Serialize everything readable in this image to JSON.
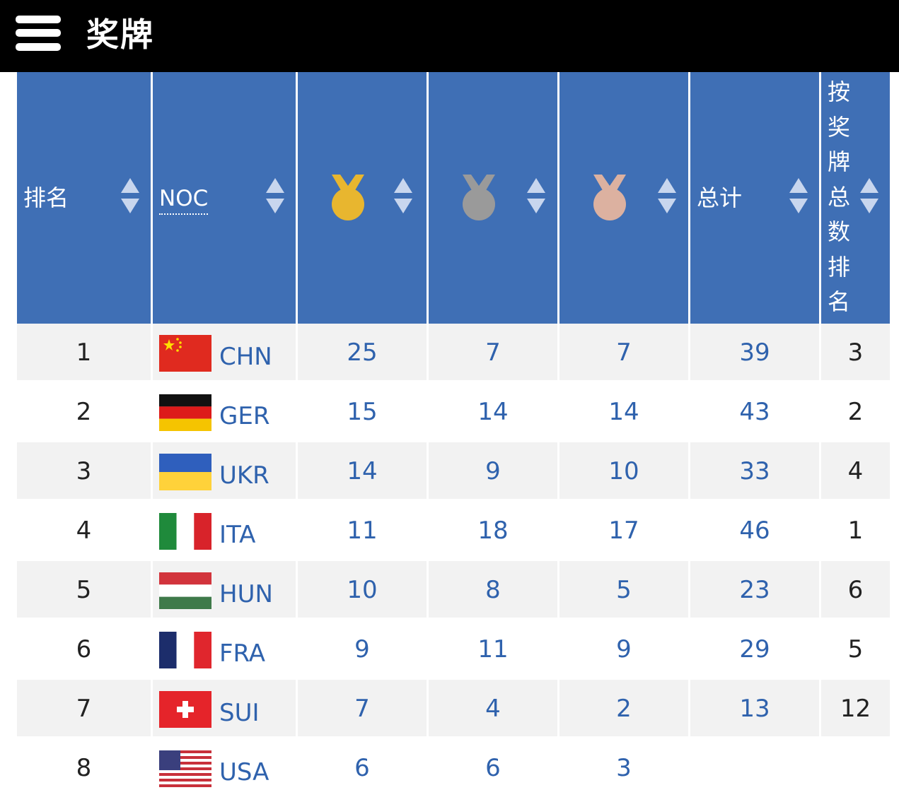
{
  "header": {
    "title": "奖牌"
  },
  "table": {
    "columns": {
      "rank": "排名",
      "noc": "NOC",
      "gold": "gold-medal-icon",
      "silver": "silver-medal-icon",
      "bronze": "bronze-medal-icon",
      "total": "总计",
      "total_rank_chars": [
        "按",
        "奖",
        "牌",
        "总",
        "数",
        "排",
        "名"
      ]
    },
    "colors": {
      "header_bg": "#3f6fb5",
      "value_text": "#2f62ad",
      "gold": "#e8b62f",
      "silver": "#9a9a9a",
      "bronze": "#dcb1a0"
    },
    "rows": [
      {
        "rank": "1",
        "flag": "china-flag-icon",
        "code": "CHN",
        "gold": "25",
        "silver": "7",
        "bronze": "7",
        "total": "39",
        "total_rank": "3"
      },
      {
        "rank": "2",
        "flag": "germany-flag-icon",
        "code": "GER",
        "gold": "15",
        "silver": "14",
        "bronze": "14",
        "total": "43",
        "total_rank": "2"
      },
      {
        "rank": "3",
        "flag": "ukraine-flag-icon",
        "code": "UKR",
        "gold": "14",
        "silver": "9",
        "bronze": "10",
        "total": "33",
        "total_rank": "4"
      },
      {
        "rank": "4",
        "flag": "italy-flag-icon",
        "code": "ITA",
        "gold": "11",
        "silver": "18",
        "bronze": "17",
        "total": "46",
        "total_rank": "1"
      },
      {
        "rank": "5",
        "flag": "hungary-flag-icon",
        "code": "HUN",
        "gold": "10",
        "silver": "8",
        "bronze": "5",
        "total": "23",
        "total_rank": "6"
      },
      {
        "rank": "6",
        "flag": "france-flag-icon",
        "code": "FRA",
        "gold": "9",
        "silver": "11",
        "bronze": "9",
        "total": "29",
        "total_rank": "5"
      },
      {
        "rank": "7",
        "flag": "switzerland-flag-icon",
        "code": "SUI",
        "gold": "7",
        "silver": "4",
        "bronze": "2",
        "total": "13",
        "total_rank": "12"
      },
      {
        "rank": "8",
        "flag": "usa-flag-icon",
        "code": "USA",
        "gold": "6",
        "silver": "6",
        "bronze": "3",
        "total": "",
        "total_rank": ""
      }
    ]
  }
}
